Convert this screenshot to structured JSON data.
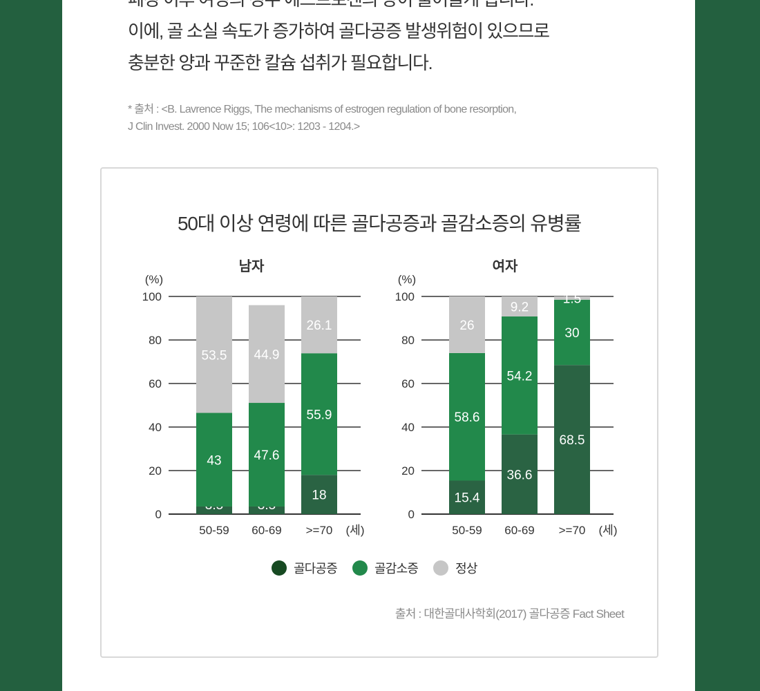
{
  "intro": {
    "lines": [
      "폐경 이후 여성의 경우 에스트로겐의 양이 줄어들게 됩니다.",
      "이에, 골 소실 속도가 증가하여 골다공증 발생위험이 있으므로",
      "충분한 양과 꾸준한 칼슘 섭취가 필요합니다."
    ],
    "source_lines": [
      "* 출처 : <B. Lavrence Riggs, The mechanisms of estrogen regulation of bone resorption,",
      "J Clin Invest. 2000 Now 15; 106<10>: 1203 - 1204.>"
    ]
  },
  "chart_data": {
    "type": "bar",
    "stacked": true,
    "title": "50대 이상 연령에 따른 골다공증과 골감소증의 유병률",
    "ylabel": "(%)",
    "xunit": "(세)",
    "ylim": [
      0,
      100
    ],
    "yticks": [
      0,
      20,
      40,
      60,
      80,
      100
    ],
    "grid": true,
    "legend_position": "bottom",
    "panels": [
      {
        "title": "남자",
        "categories": [
          "50-59",
          "60-69",
          ">=70"
        ],
        "series": [
          {
            "name": "골다공증",
            "color": "#1b4d2e",
            "values": [
              3.5,
              3.5,
              18
            ]
          },
          {
            "name": "골감소증",
            "color": "#22894b",
            "values": [
              43,
              47.6,
              55.9
            ]
          },
          {
            "name": "정상",
            "color": "#c6c6c6",
            "values": [
              53.5,
              44.9,
              26.1
            ]
          }
        ]
      },
      {
        "title": "여자",
        "categories": [
          "50-59",
          "60-69",
          ">=70"
        ],
        "series": [
          {
            "name": "골다공증",
            "color": "#1b4d2e",
            "values": [
              15.4,
              36.6,
              68.5
            ]
          },
          {
            "name": "골감소증",
            "color": "#22894b",
            "values": [
              58.6,
              54.2,
              30
            ]
          },
          {
            "name": "정상",
            "color": "#c6c6c6",
            "values": [
              26,
              9.2,
              1.5
            ]
          }
        ]
      }
    ],
    "legend": [
      {
        "label": "골다공증",
        "color": "#1b4d2e"
      },
      {
        "label": "골감소증",
        "color": "#22894b"
      },
      {
        "label": "정상",
        "color": "#c6c6c6"
      }
    ],
    "source": "출처 : 대한골대사학회(2017) 골다공증 Fact Sheet"
  },
  "colors": {
    "background": "#23603f",
    "osteoporosis_bar": "#2a6343",
    "axis": "#333333"
  }
}
